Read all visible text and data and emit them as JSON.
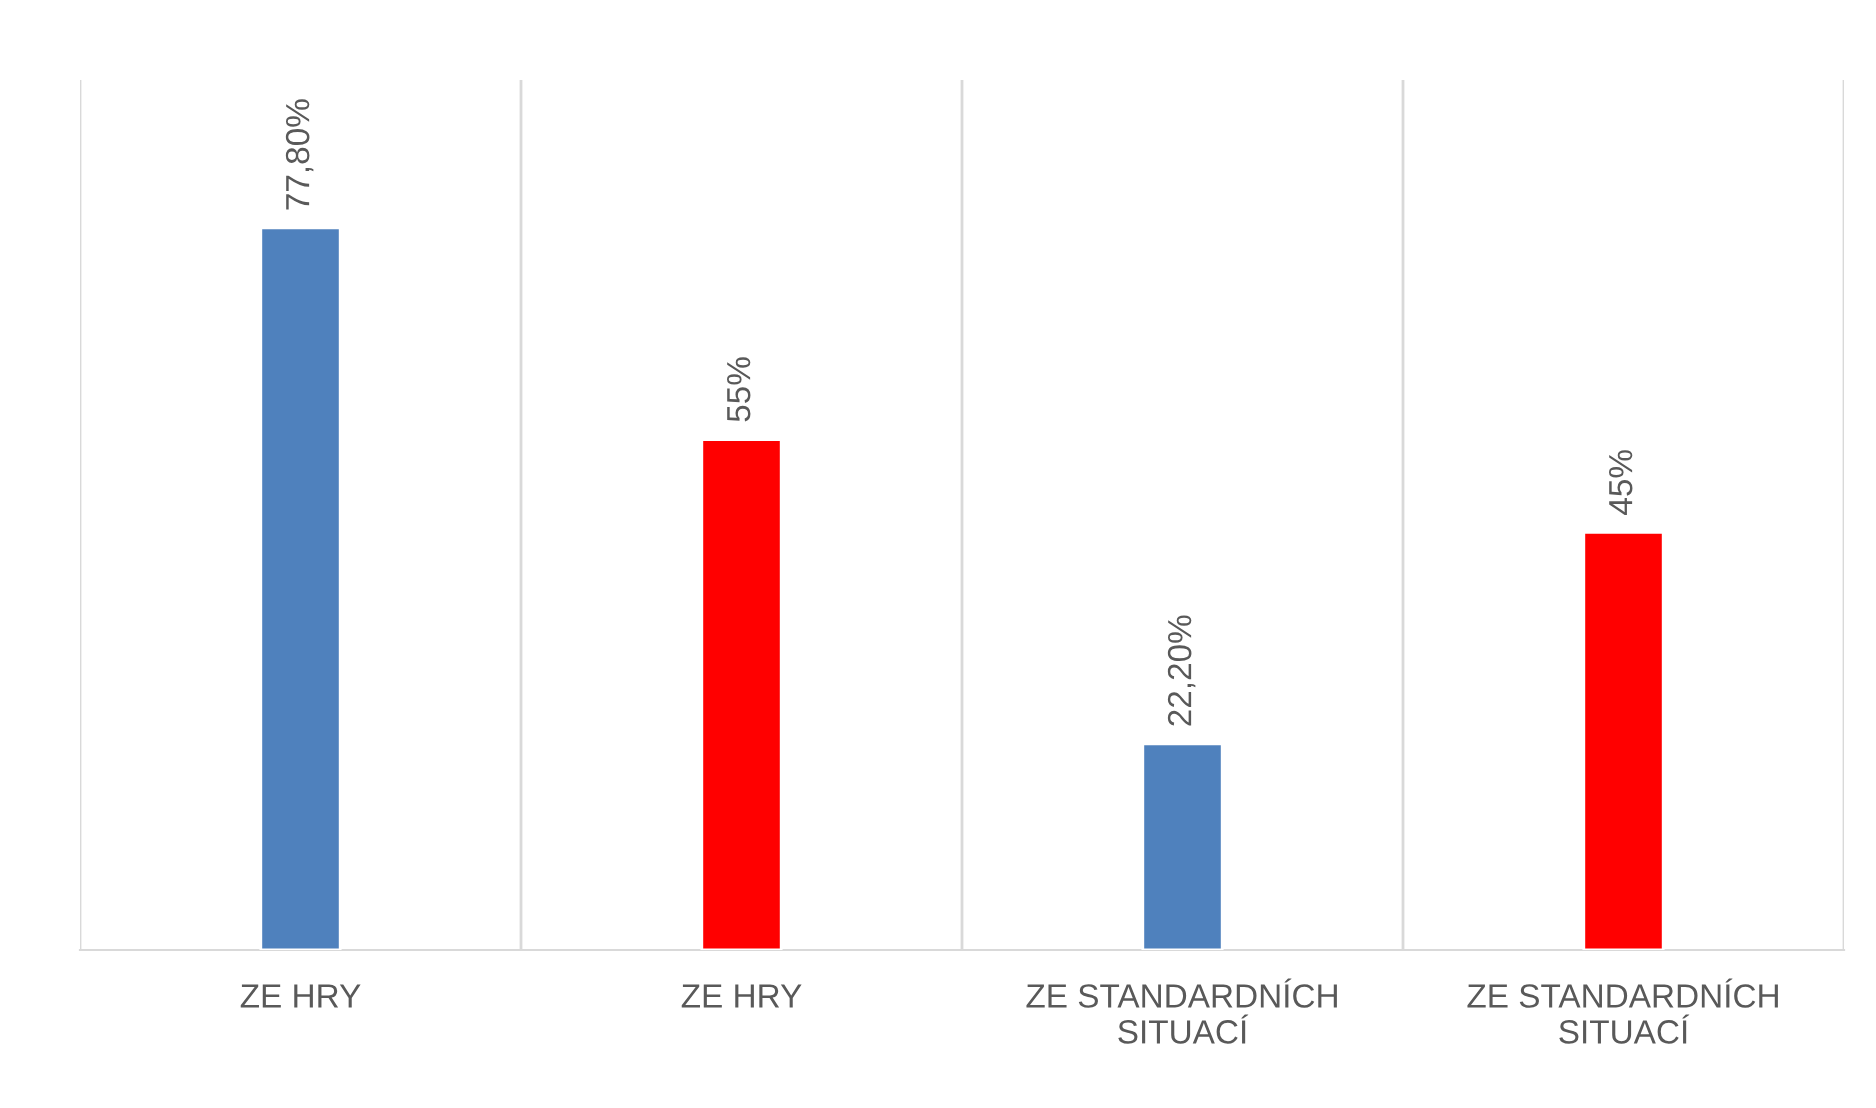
{
  "chart_data": {
    "type": "bar",
    "categories": [
      "ZE HRY",
      "ZE HRY",
      "ZE STANDARDNÍCH\nSITUACÍ",
      "ZE STANDARDNÍCH\nSITUACÍ"
    ],
    "values": [
      77.8,
      55,
      22.2,
      45
    ],
    "colors": [
      "#4f81bd",
      "#ff0000",
      "#4f81bd",
      "#ff0000"
    ],
    "value_labels": [
      "77,80%",
      "55%",
      "22,20%",
      "45%"
    ],
    "grid": "x",
    "legend": false
  }
}
